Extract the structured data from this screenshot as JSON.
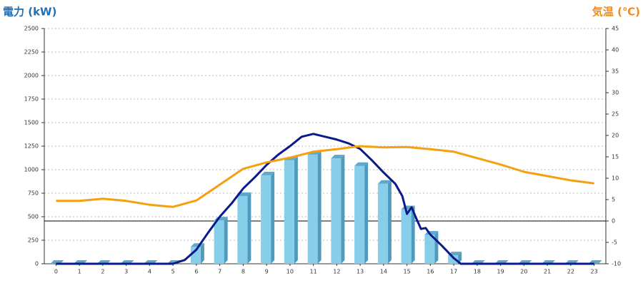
{
  "chart_data": {
    "type": "bar",
    "y_label": "電力 (kW)",
    "y2_label": "気温 (℃)",
    "categories": [
      "0",
      "1",
      "2",
      "3",
      "4",
      "5",
      "6",
      "7",
      "8",
      "9",
      "10",
      "11",
      "12",
      "13",
      "14",
      "15",
      "16",
      "17",
      "18",
      "19",
      "20",
      "21",
      "22",
      "23"
    ],
    "series": [
      {
        "type": "bar",
        "color": "#87ceeb",
        "values": [
          0,
          0,
          0,
          0,
          0,
          0,
          180,
          460,
          720,
          940,
          1100,
          1160,
          1120,
          1040,
          850,
          580,
          310,
          90,
          0,
          0,
          0,
          0,
          0,
          0
        ]
      },
      {
        "type": "line",
        "color": "#0a1a8c",
        "x": [
          0,
          5,
          5.5,
          6,
          6.5,
          7,
          7.5,
          8,
          8.5,
          9,
          9.5,
          10,
          10.5,
          11,
          11.5,
          12,
          12.5,
          13,
          13.5,
          14,
          14.5,
          14.8,
          15,
          15.2,
          15.4,
          15.6,
          15.8,
          16,
          16.5,
          17,
          17.3,
          23
        ],
        "values": [
          0,
          0,
          40,
          150,
          330,
          500,
          640,
          800,
          920,
          1050,
          1160,
          1250,
          1350,
          1380,
          1350,
          1320,
          1280,
          1220,
          1100,
          970,
          850,
          720,
          530,
          600,
          480,
          370,
          380,
          310,
          190,
          60,
          0,
          0
        ]
      },
      {
        "type": "line",
        "axis": "y2",
        "color": "#f5a00f",
        "values": [
          4.7,
          4.7,
          5.2,
          4.7,
          3.8,
          3.3,
          4.8,
          8.5,
          12.2,
          13.7,
          14.8,
          16.2,
          16.8,
          17.5,
          17.2,
          17.3,
          16.8,
          16.2,
          14.7,
          13.2,
          11.5,
          10.5,
          9.5,
          8.8
        ]
      }
    ],
    "ylim": [
      0,
      2500
    ],
    "yticks": [
      0,
      250,
      500,
      750,
      1000,
      1250,
      1500,
      1750,
      2000,
      2250,
      2500
    ],
    "y2lim": [
      -10,
      45
    ],
    "y2ticks": [
      -10,
      -5,
      0,
      5,
      10,
      15,
      20,
      25,
      30,
      35,
      40,
      45
    ],
    "grid": true,
    "y2_zero_line": true
  }
}
